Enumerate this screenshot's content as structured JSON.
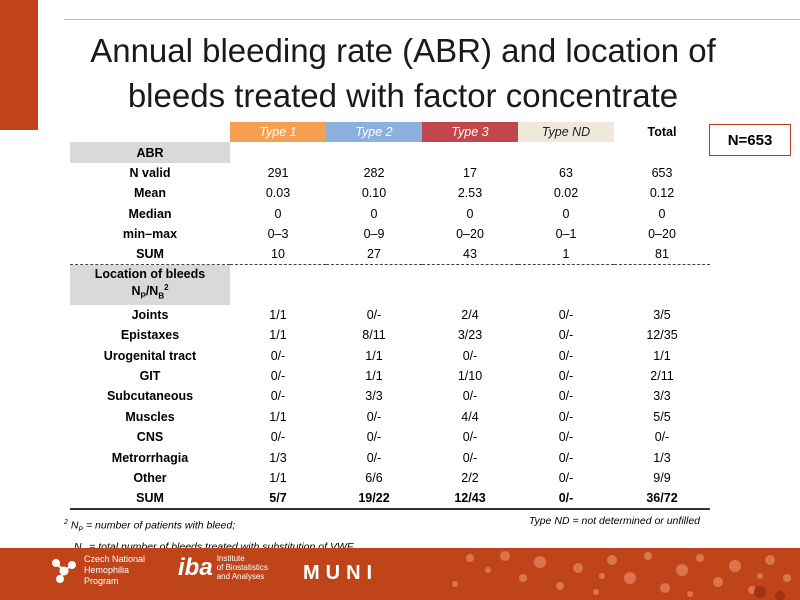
{
  "title_line1": "Annual bleeding rate (ABR) and location of",
  "title_line2": "bleeds treated with factor concentrate",
  "badge": "N=653",
  "headers": {
    "type1": "Type 1",
    "type2": "Type 2",
    "type3": "Type 3",
    "typend": "Type ND",
    "total": "Total"
  },
  "section1_label": "ABR",
  "abr_rows": [
    {
      "label": "N valid",
      "v": [
        "291",
        "282",
        "17",
        "63",
        "653"
      ]
    },
    {
      "label": "Mean",
      "v": [
        "0.03",
        "0.10",
        "2.53",
        "0.02",
        "0.12"
      ]
    },
    {
      "label": "Median",
      "v": [
        "0",
        "0",
        "0",
        "0",
        "0"
      ]
    },
    {
      "label": "min–max",
      "v": [
        "0–3",
        "0–9",
        "0–20",
        "0–1",
        "0–20"
      ]
    },
    {
      "label": "SUM",
      "v": [
        "10",
        "27",
        "43",
        "1",
        "81"
      ]
    }
  ],
  "section2_label": "Location of bleeds",
  "section2_sublabel": "NP/NB2",
  "location_rows": [
    {
      "label": "Joints",
      "v": [
        "1/1",
        "0/-",
        "2/4",
        "0/-",
        "3/5"
      ]
    },
    {
      "label": "Epistaxes",
      "v": [
        "1/1",
        "8/11",
        "3/23",
        "0/-",
        "12/35"
      ]
    },
    {
      "label": "Urogenital tract",
      "v": [
        "0/-",
        "1/1",
        "0/-",
        "0/-",
        "1/1"
      ]
    },
    {
      "label": "GIT",
      "v": [
        "0/-",
        "1/1",
        "1/10",
        "0/-",
        "2/11"
      ]
    },
    {
      "label": "Subcutaneous",
      "v": [
        "0/-",
        "3/3",
        "0/-",
        "0/-",
        "3/3"
      ]
    },
    {
      "label": "Muscles",
      "v": [
        "1/1",
        "0/-",
        "4/4",
        "0/-",
        "5/5"
      ]
    },
    {
      "label": "CNS",
      "v": [
        "0/-",
        "0/-",
        "0/-",
        "0/-",
        "0/-"
      ]
    },
    {
      "label": "Metrorrhagia",
      "v": [
        "1/3",
        "0/-",
        "0/-",
        "0/-",
        "1/3"
      ]
    },
    {
      "label": "Other",
      "v": [
        "1/1",
        "6/6",
        "2/2",
        "0/-",
        "9/9"
      ]
    },
    {
      "label": "SUM",
      "v": [
        "5/7",
        "19/22",
        "12/43",
        "0/-",
        "36/72"
      ]
    }
  ],
  "footnote_line1": "2 NP = number of patients with bleed;",
  "footnote_line2": "NB = total number of bleeds treated with substitution of VWF",
  "footnote_right": "Type ND = not determined or unfilled",
  "logos": {
    "cnhp": [
      "Czech National",
      "Hemophilia",
      "Program"
    ],
    "iba_big": "iba",
    "iba_small": [
      "Institute",
      "of Biostatistics",
      "and Analyses"
    ],
    "muni": "MUNI"
  },
  "colors": {
    "accent": "#c0441a",
    "type1": "#f4a050",
    "type2": "#8cb0e0",
    "type3": "#c2474c",
    "typend": "#efe9dc"
  }
}
